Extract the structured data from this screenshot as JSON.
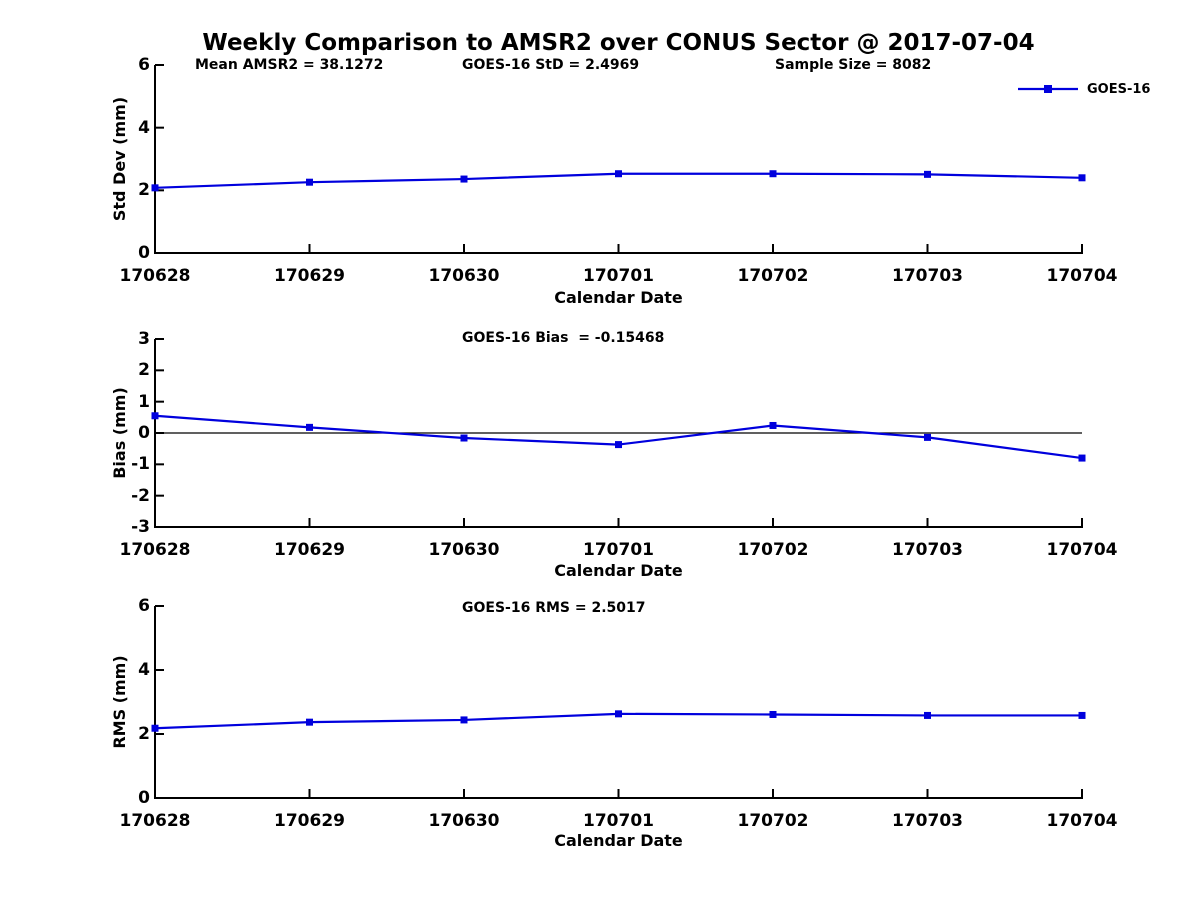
{
  "figure": {
    "title": "Weekly Comparison to AMSR2 over CONUS Sector @ 2017-07-04"
  },
  "header_annotations": {
    "mean_amsr2": "Mean AMSR2 = 38.1272",
    "goes16_std": "GOES-16 StD = 2.4969",
    "sample_size": "Sample Size = 8082"
  },
  "legend": {
    "series_label": "GOES-16",
    "position": "top-right"
  },
  "xlabel": "Calendar Date",
  "colors": {
    "line": "#0000dd",
    "marker": "#0000dd",
    "axis": "#000000",
    "background": "#ffffff"
  },
  "chart_data": [
    {
      "type": "line",
      "panel": "std-dev",
      "ylabel": "Std Dev (mm)",
      "xlabel": "Calendar Date",
      "categories": [
        "170628",
        "170629",
        "170630",
        "170701",
        "170702",
        "170703",
        "170704"
      ],
      "series": [
        {
          "name": "GOES-16",
          "values": [
            2.08,
            2.26,
            2.36,
            2.53,
            2.53,
            2.51,
            2.4
          ]
        }
      ],
      "ylim": [
        0,
        6
      ],
      "yticks": [
        0,
        2,
        4,
        6
      ],
      "grid": false,
      "zero_line": false,
      "annotation": "",
      "marker": "square"
    },
    {
      "type": "line",
      "panel": "bias",
      "ylabel": "Bias (mm)",
      "xlabel": "Calendar Date",
      "categories": [
        "170628",
        "170629",
        "170630",
        "170701",
        "170702",
        "170703",
        "170704"
      ],
      "series": [
        {
          "name": "GOES-16",
          "values": [
            0.55,
            0.18,
            -0.16,
            -0.37,
            0.24,
            -0.14,
            -0.8
          ]
        }
      ],
      "ylim": [
        -3,
        3
      ],
      "yticks": [
        -3,
        -2,
        -1,
        0,
        1,
        2,
        3
      ],
      "grid": false,
      "zero_line": true,
      "annotation": "GOES-16 Bias  = -0.15468",
      "marker": "square"
    },
    {
      "type": "line",
      "panel": "rms",
      "ylabel": "RMS (mm)",
      "xlabel": "Calendar Date",
      "categories": [
        "170628",
        "170629",
        "170630",
        "170701",
        "170702",
        "170703",
        "170704"
      ],
      "series": [
        {
          "name": "GOES-16",
          "values": [
            2.18,
            2.37,
            2.44,
            2.63,
            2.61,
            2.58,
            2.58
          ]
        }
      ],
      "ylim": [
        0,
        6
      ],
      "yticks": [
        0,
        2,
        4,
        6
      ],
      "grid": false,
      "zero_line": false,
      "annotation": "GOES-16 RMS = 2.5017",
      "marker": "square"
    }
  ]
}
